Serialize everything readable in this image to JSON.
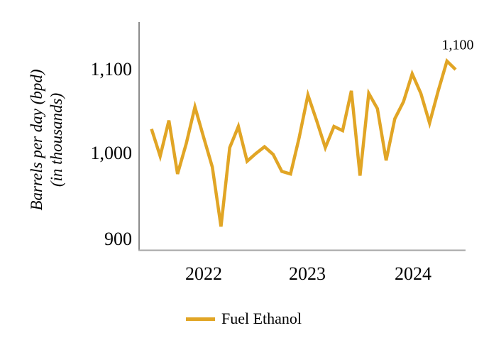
{
  "chart_data": {
    "type": "line",
    "title": "",
    "ylabel_line1": "Barrels per day (bpd)",
    "ylabel_line2": "(in thousands)",
    "xlabel": "",
    "y_ticks": [
      "1,100",
      "1,000",
      "900"
    ],
    "x_ticks": [
      "2022",
      "2023",
      "2024"
    ],
    "ylim": [
      900,
      1100
    ],
    "grid": false,
    "legend_position": "bottom-center",
    "annotation": {
      "text": "1,100",
      "applies_to": "Dec 2024"
    },
    "series": [
      {
        "name": "Fuel Ethanol",
        "color": "#E1A525",
        "x": [
          "Jan 2022",
          "Feb 2022",
          "Mar 2022",
          "Apr 2022",
          "May 2022",
          "Jun 2022",
          "Jul 2022",
          "Aug 2022",
          "Sep 2022",
          "Oct 2022",
          "Nov 2022",
          "Dec 2022",
          "Jan 2023",
          "Feb 2023",
          "Mar 2023",
          "Apr 2023",
          "May 2023",
          "Jun 2023",
          "Jul 2023",
          "Aug 2023",
          "Sep 2023",
          "Oct 2023",
          "Nov 2023",
          "Dec 2023",
          "Jan 2024",
          "Feb 2024",
          "Mar 2024",
          "Apr 2024",
          "May 2024",
          "Jun 2024",
          "Jul 2024",
          "Aug 2024",
          "Sep 2024",
          "Oct 2024",
          "Nov 2024",
          "Dec 2024"
        ],
        "values": [
          1030,
          998,
          1040,
          977,
          1013,
          1056,
          1020,
          985,
          915,
          1008,
          1033,
          992,
          1001,
          1009,
          1000,
          980,
          977,
          1020,
          1070,
          1040,
          1008,
          1033,
          1028,
          1075,
          975,
          1072,
          1054,
          993,
          1042,
          1062,
          1095,
          1072,
          1037,
          1075,
          1110,
          1100
        ]
      }
    ]
  },
  "legend": {
    "label": "Fuel Ethanol"
  },
  "colors": {
    "line": "#E1A525",
    "axis_vertical": "#8C8C8C",
    "axis_horizontal": "#A6A6A6",
    "text": "#000000"
  }
}
